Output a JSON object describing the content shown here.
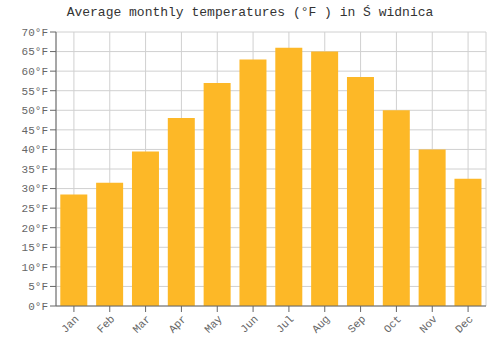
{
  "chart_data": {
    "type": "bar",
    "title": "Average monthly temperatures (°F ) in Ś widnica",
    "categories": [
      "Jan",
      "Feb",
      "Mar",
      "Apr",
      "May",
      "Jun",
      "Jul",
      "Aug",
      "Sep",
      "Oct",
      "Nov",
      "Dec"
    ],
    "values": [
      28.5,
      31.5,
      39.5,
      48.0,
      57.0,
      63.0,
      66.0,
      65.0,
      58.5,
      50.0,
      40.0,
      32.5
    ],
    "color": "#FDB827",
    "ylim": [
      0,
      70
    ],
    "yticks": [
      {
        "value": 0,
        "label": "0°F"
      },
      {
        "value": 5,
        "label": "5°F"
      },
      {
        "value": 10,
        "label": "10°F"
      },
      {
        "value": 15,
        "label": "15°F"
      },
      {
        "value": 20,
        "label": "20°F"
      },
      {
        "value": 25,
        "label": "25°F"
      },
      {
        "value": 30,
        "label": "30°F"
      },
      {
        "value": 35,
        "label": "35°F"
      },
      {
        "value": 40,
        "label": "40°F"
      },
      {
        "value": 45,
        "label": "45°F"
      },
      {
        "value": 50,
        "label": "50°F"
      },
      {
        "value": 55,
        "label": "55°F"
      },
      {
        "value": 60,
        "label": "60°F"
      },
      {
        "value": 65,
        "label": "65°F"
      },
      {
        "value": 70,
        "label": "70°F"
      }
    ],
    "grid": true
  }
}
